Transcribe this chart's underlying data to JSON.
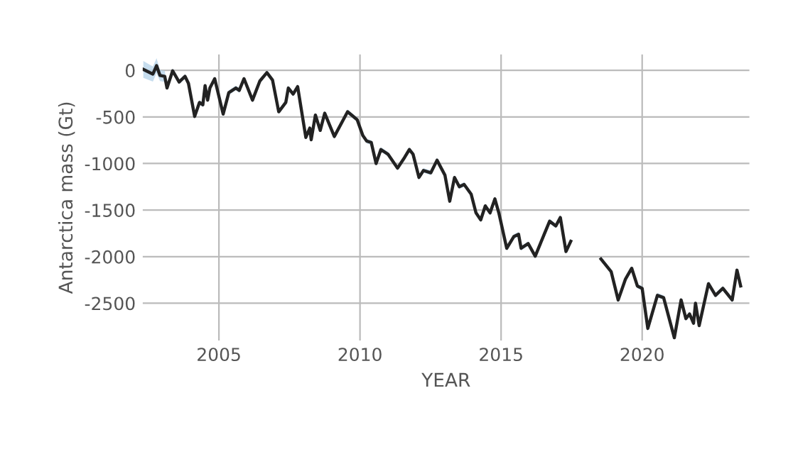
{
  "chart_data": {
    "type": "line",
    "xlabel": "YEAR",
    "ylabel": "Antarctica mass (Gt)",
    "xlim": [
      2002.3,
      2023.8
    ],
    "ylim": [
      -2900,
      170
    ],
    "xticks": [
      2005,
      2010,
      2015,
      2020
    ],
    "yticks": [
      0,
      -500,
      -1000,
      -1500,
      -2000,
      -2500
    ],
    "grid": true,
    "marker": "none",
    "line_style": "solid",
    "series": [
      {
        "color": "#222222",
        "x": [
          2002.32,
          2002.66,
          2002.79,
          2002.91,
          2003.08,
          2003.16,
          2003.36,
          2003.59,
          2003.8,
          2003.92,
          2004.14,
          2004.31,
          2004.43,
          2004.51,
          2004.6,
          2004.68,
          2004.85,
          2005.15,
          2005.35,
          2005.6,
          2005.72,
          2005.89,
          2006.19,
          2006.45,
          2006.7,
          2006.9,
          2007.12,
          2007.37,
          2007.46,
          2007.63,
          2007.79,
          2007.96,
          2008.08,
          2008.22,
          2008.27,
          2008.42,
          2008.59,
          2008.75,
          2009.09,
          2009.56,
          2009.9,
          2010.1,
          2010.24,
          2010.4,
          2010.57,
          2010.74,
          2010.99,
          2011.33,
          2011.58,
          2011.75,
          2011.88,
          2012.09,
          2012.25,
          2012.51,
          2012.73,
          2013.01,
          2013.18,
          2013.35,
          2013.52,
          2013.69,
          2013.94,
          2014.11,
          2014.28,
          2014.44,
          2014.61,
          2014.78,
          2014.92,
          2015.2,
          2015.45,
          2015.62,
          2015.71,
          2015.96,
          2016.21,
          2016.46,
          2016.72,
          2016.94,
          2017.1,
          2017.3,
          2017.47,
          2018.0,
          2018.54,
          2018.9,
          2019.15,
          2019.41,
          2019.63,
          2019.83,
          2020.0,
          2020.2,
          2020.54,
          2020.76,
          2021.14,
          2021.38,
          2021.55,
          2021.68,
          2021.82,
          2021.89,
          2022.02,
          2022.35,
          2022.6,
          2022.86,
          2023.19,
          2023.36,
          2023.49
        ],
        "values": [
          10,
          -40,
          50,
          -55,
          -65,
          -190,
          -5,
          -125,
          -65,
          -140,
          -495,
          -345,
          -370,
          -165,
          -320,
          -190,
          -90,
          -470,
          -240,
          -190,
          -215,
          -90,
          -320,
          -115,
          -25,
          -105,
          -445,
          -345,
          -190,
          -255,
          -175,
          -495,
          -720,
          -620,
          -745,
          -480,
          -645,
          -460,
          -710,
          -445,
          -530,
          -700,
          -760,
          -775,
          -1000,
          -850,
          -900,
          -1050,
          -935,
          -850,
          -900,
          -1150,
          -1075,
          -1100,
          -965,
          -1125,
          -1405,
          -1150,
          -1250,
          -1225,
          -1330,
          -1530,
          -1605,
          -1455,
          -1530,
          -1380,
          -1530,
          -1910,
          -1785,
          -1760,
          -1910,
          -1860,
          -1995,
          -1810,
          -1620,
          -1670,
          -1580,
          -1945,
          -1835,
          null,
          -2025,
          -2160,
          -2465,
          -2240,
          -2125,
          -2315,
          -2340,
          -2770,
          -2415,
          -2440,
          -2870,
          -2465,
          -2665,
          -2615,
          -2715,
          -2500,
          -2740,
          -2290,
          -2415,
          -2340,
          -2465,
          -2145,
          -2315
        ],
        "lower": [
          -80,
          -120,
          -30,
          -115,
          -125,
          -215,
          -30,
          -150,
          -90,
          -165,
          -520,
          -370,
          -395,
          -190,
          -345,
          -215,
          -115,
          -495,
          -265,
          -215,
          -240,
          -115,
          -345,
          -140,
          -50,
          -130,
          -470,
          -370,
          -215,
          -280,
          -200,
          -520,
          -745,
          -645,
          -770,
          -505,
          -670,
          -485,
          -735,
          -470,
          -555,
          -725,
          -785,
          -800,
          -1025,
          -875,
          -925,
          -1075,
          -960,
          -875,
          -925,
          -1175,
          -1100,
          -1125,
          -990,
          -1150,
          -1430,
          -1175,
          -1275,
          -1250,
          -1355,
          -1555,
          -1630,
          -1480,
          -1555,
          -1405,
          -1555,
          -1935,
          -1810,
          -1785,
          -1935,
          -1885,
          -2020,
          -1835,
          -1645,
          -1695,
          -1605,
          -1970,
          -1860,
          null,
          -2050,
          -2185,
          -2490,
          -2265,
          -2150,
          -2340,
          -2365,
          -2795,
          -2440,
          -2465,
          -2895,
          -2490,
          -2690,
          -2640,
          -2740,
          -2525,
          -2765,
          -2315,
          -2440,
          -2365,
          -2490,
          -2170,
          -2340
        ],
        "upper": [
          100,
          40,
          130,
          5,
          -5,
          -165,
          20,
          -100,
          -40,
          -115,
          -470,
          -320,
          -345,
          -140,
          -295,
          -165,
          -65,
          -445,
          -215,
          -165,
          -190,
          -65,
          -295,
          -90,
          0,
          -80,
          -420,
          -320,
          -165,
          -230,
          -150,
          -470,
          -695,
          -595,
          -720,
          -455,
          -620,
          -435,
          -685,
          -420,
          -505,
          -675,
          -735,
          -750,
          -975,
          -825,
          -875,
          -1025,
          -910,
          -825,
          -875,
          -1125,
          -1050,
          -1075,
          -940,
          -1100,
          -1380,
          -1125,
          -1225,
          -1200,
          -1305,
          -1505,
          -1580,
          -1430,
          -1505,
          -1355,
          -1505,
          -1885,
          -1760,
          -1735,
          -1885,
          -1835,
          -1970,
          -1785,
          -1595,
          -1645,
          -1555,
          -1920,
          -1810,
          null,
          -2000,
          -2135,
          -2440,
          -2215,
          -2100,
          -2290,
          -2315,
          -2745,
          -2390,
          -2415,
          -2845,
          -2440,
          -2640,
          -2590,
          -2690,
          -2475,
          -2715,
          -2265,
          -2390,
          -2315,
          -2440,
          -2120,
          -2290
        ]
      }
    ]
  }
}
